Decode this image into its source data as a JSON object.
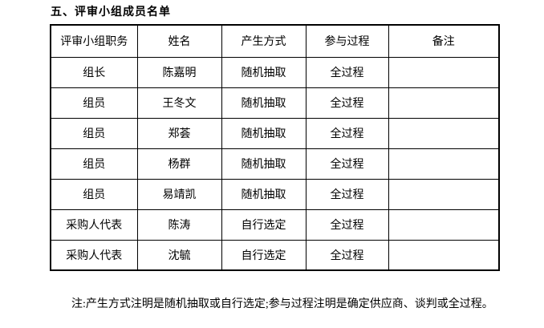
{
  "page": {
    "title": "五、评审小组成员名单",
    "note": "注:产生方式注明是随机抽取或自行选定;参与过程注明是确定供应商、谈判或全过程。"
  },
  "table": {
    "headers": [
      "评审小组职务",
      "姓名",
      "产生方式",
      "参与过程",
      "备注"
    ],
    "rows": [
      [
        "组长",
        "陈嘉明",
        "随机抽取",
        "全过程",
        ""
      ],
      [
        "组员",
        "王冬文",
        "随机抽取",
        "全过程",
        ""
      ],
      [
        "组员",
        "郑荟",
        "随机抽取",
        "全过程",
        ""
      ],
      [
        "组员",
        "杨群",
        "随机抽取",
        "全过程",
        ""
      ],
      [
        "组员",
        "易靖凯",
        "随机抽取",
        "全过程",
        ""
      ],
      [
        "采购人代表",
        "陈涛",
        "自行选定",
        "全过程",
        ""
      ],
      [
        "采购人代表",
        "沈毓",
        "自行选定",
        "全过程",
        ""
      ]
    ]
  },
  "colors": {
    "text": "#000000",
    "background": "#ffffff",
    "border": "#000000"
  }
}
